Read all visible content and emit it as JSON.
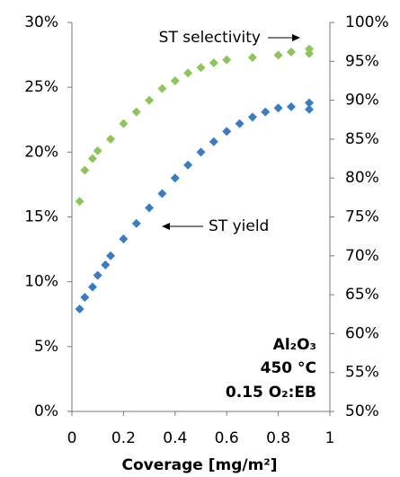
{
  "chart_data": {
    "type": "scatter",
    "xlabel": "Coverage [mg/m²]",
    "xlim": [
      0,
      1
    ],
    "xticks": [
      0,
      0.2,
      0.4,
      0.6,
      0.8,
      1
    ],
    "ylim": [
      0,
      30
    ],
    "yticks": [
      {
        "value": 0,
        "label": "0%"
      },
      {
        "value": 5,
        "label": "5%"
      },
      {
        "value": 10,
        "label": "10%"
      },
      {
        "value": 15,
        "label": "15%"
      },
      {
        "value": 20,
        "label": "20%"
      },
      {
        "value": 25,
        "label": "25%"
      },
      {
        "value": 30,
        "label": "30%"
      }
    ],
    "y2lim": [
      50,
      100
    ],
    "y2ticks": [
      {
        "value": 50,
        "label": "50%"
      },
      {
        "value": 55,
        "label": "55%"
      },
      {
        "value": 60,
        "label": "60%"
      },
      {
        "value": 65,
        "label": "65%"
      },
      {
        "value": 70,
        "label": "70%"
      },
      {
        "value": 75,
        "label": "75%"
      },
      {
        "value": 80,
        "label": "80%"
      },
      {
        "value": 85,
        "label": "85%"
      },
      {
        "value": 90,
        "label": "90%"
      },
      {
        "value": 95,
        "label": "95%"
      },
      {
        "value": 100,
        "label": "100%"
      }
    ],
    "grid": false,
    "annotations": [
      "Al₂O₃",
      "450 °C",
      "0.15 O₂:EB"
    ],
    "series": [
      {
        "name": "ST yield",
        "color": "#3a7cc3",
        "x": [
          0.03,
          0.05,
          0.08,
          0.1,
          0.13,
          0.15,
          0.2,
          0.25,
          0.3,
          0.35,
          0.4,
          0.45,
          0.5,
          0.55,
          0.6,
          0.65,
          0.7,
          0.75,
          0.8,
          0.85,
          0.92,
          0.92
        ],
        "values": [
          7.9,
          8.8,
          9.6,
          10.5,
          11.3,
          12,
          13.3,
          14.5,
          15.7,
          16.8,
          18,
          19,
          20,
          20.8,
          21.6,
          22.2,
          22.7,
          23.1,
          23.4,
          23.5,
          23.3,
          23.8
        ]
      },
      {
        "name": "ST selectivity",
        "color": "#8ec55a",
        "axis": "y2",
        "x": [
          0.03,
          0.05,
          0.08,
          0.1,
          0.15,
          0.2,
          0.25,
          0.3,
          0.35,
          0.4,
          0.45,
          0.5,
          0.55,
          0.6,
          0.7,
          0.8,
          0.85,
          0.92,
          0.92
        ],
        "values": [
          77,
          81,
          82.5,
          83.5,
          85,
          87,
          88.5,
          90,
          91.5,
          92.5,
          93.5,
          94.2,
          94.8,
          95.2,
          95.5,
          95.8,
          96.2,
          96,
          96.6
        ]
      }
    ]
  }
}
